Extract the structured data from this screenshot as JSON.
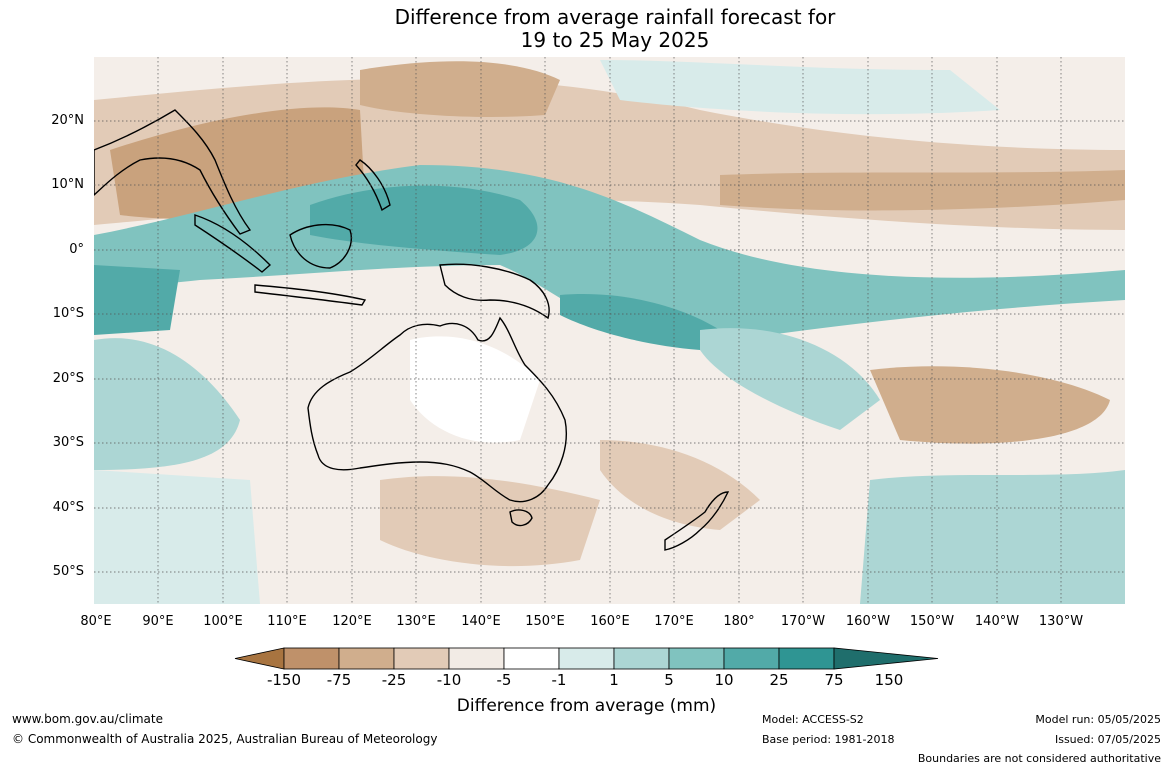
{
  "title": {
    "line1": "Difference from average rainfall forecast for",
    "line2": "19 to 25 May 2025"
  },
  "map": {
    "lat_labels": [
      "20°N",
      "10°N",
      "0°",
      "10°S",
      "20°S",
      "30°S",
      "40°S",
      "50°S"
    ],
    "lon_labels": [
      "80°E",
      "90°E",
      "100°E",
      "110°E",
      "120°E",
      "130°E",
      "140°E",
      "150°E",
      "160°E",
      "170°E",
      "180°",
      "170°W",
      "160°W",
      "150°W",
      "140°W",
      "130°W"
    ]
  },
  "colorbar": {
    "label": "Difference from average (mm)",
    "ticks": [
      "-150",
      "-75",
      "-25",
      "-10",
      "-5",
      "-1",
      "1",
      "5",
      "10",
      "25",
      "75",
      "150"
    ],
    "colors": [
      "#a87440",
      "#bf916a",
      "#d0ae8d",
      "#e2cbb7",
      "#f2ebe5",
      "#ffffff",
      "#d8ebea",
      "#acd6d4",
      "#80c3bf",
      "#52aaa8",
      "#2f9593",
      "#1f6e6c"
    ]
  },
  "footer": {
    "website": "www.bom.gov.au/climate",
    "copyright": "© Commonwealth of Australia 2025, Australian Bureau of Meteorology",
    "model": "Model: ACCESS-S2",
    "base_period": "Base period: 1981-2018",
    "model_run": "Model run: 05/05/2025",
    "issued": "Issued: 07/05/2025",
    "disclaimer": "Boundaries are not considered authoritative"
  }
}
